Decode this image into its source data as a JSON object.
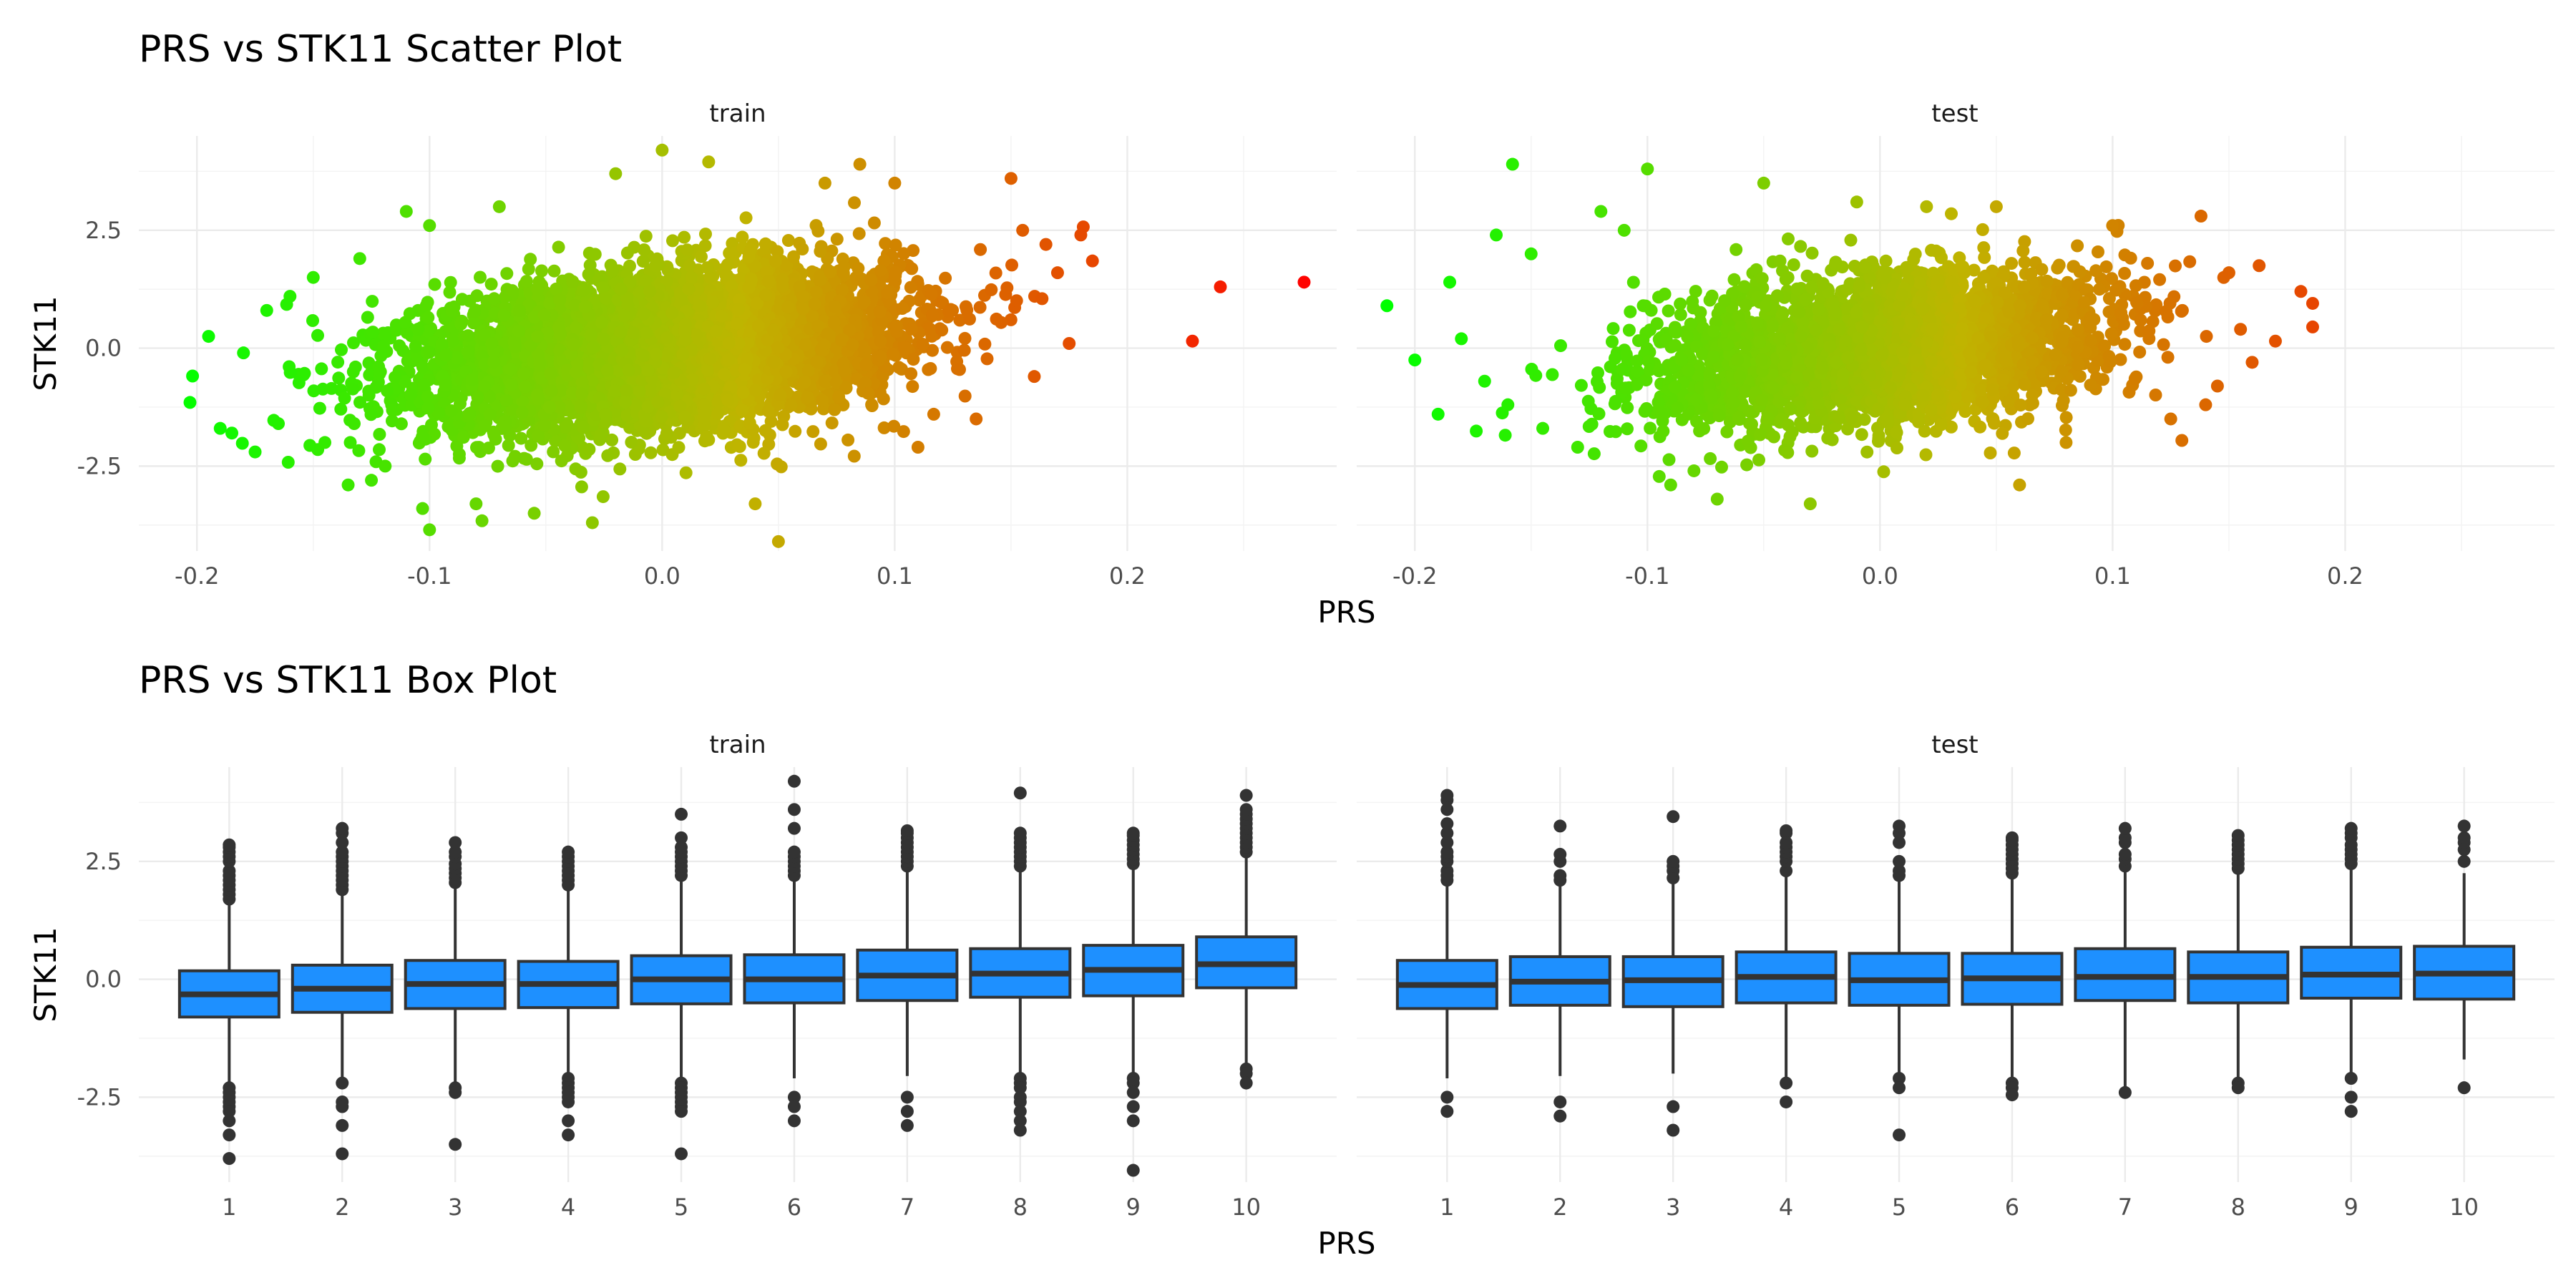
{
  "chart_data": [
    {
      "type": "scatter",
      "title": "PRS vs STK11 Scatter Plot",
      "xlabel": "PRS",
      "ylabel": "STK11",
      "xlim": [
        -0.225,
        0.29
      ],
      "ylim": [
        -4.3,
        4.5
      ],
      "x_ticks": [
        -0.2,
        -0.1,
        0.0,
        0.1,
        0.2
      ],
      "x_tick_labels": [
        "-0.2",
        "-0.1",
        "0.0",
        "0.1",
        "0.2"
      ],
      "y_ticks": [
        -2.5,
        0.0,
        2.5
      ],
      "y_tick_labels": [
        "-2.5",
        "0.0",
        "2.5"
      ],
      "grid": true,
      "legend": "none",
      "color_scale": {
        "low": "#00ff00",
        "mid": "#c0b400",
        "high": "#ff0000",
        "domain": [
          -0.21,
          0.28
        ]
      },
      "panels": [
        {
          "strip": "train",
          "cloud": {
            "n": 5600,
            "x_sd": 0.05,
            "y_sd": 0.82,
            "correlation": 0.29
          },
          "points": [
            [
              -0.203,
              -1.15
            ],
            [
              -0.195,
              0.25
            ],
            [
              -0.19,
              -1.7
            ],
            [
              -0.185,
              -1.8
            ],
            [
              -0.18,
              -0.1
            ],
            [
              -0.175,
              -2.2
            ],
            [
              -0.17,
              0.8
            ],
            [
              -0.165,
              -1.6
            ],
            [
              -0.16,
              1.1
            ],
            [
              -0.15,
              1.5
            ],
            [
              -0.145,
              -2.0
            ],
            [
              -0.135,
              -2.9
            ],
            [
              -0.13,
              1.9
            ],
            [
              -0.125,
              -2.8
            ],
            [
              -0.11,
              2.9
            ],
            [
              -0.1,
              2.6
            ],
            [
              -0.103,
              -3.4
            ],
            [
              -0.1,
              -3.85
            ],
            [
              -0.08,
              -3.3
            ],
            [
              -0.07,
              3.0
            ],
            [
              -0.055,
              -3.5
            ],
            [
              -0.03,
              -3.7
            ],
            [
              -0.02,
              3.7
            ],
            [
              0.0,
              4.2
            ],
            [
              0.02,
              3.95
            ],
            [
              0.04,
              -3.3
            ],
            [
              0.05,
              -4.1
            ],
            [
              0.07,
              3.5
            ],
            [
              0.085,
              3.9
            ],
            [
              0.1,
              3.5
            ],
            [
              0.11,
              -2.1
            ],
            [
              0.135,
              -1.5
            ],
            [
              0.15,
              3.6
            ],
            [
              0.155,
              2.5
            ],
            [
              0.16,
              -0.6
            ],
            [
              0.165,
              2.2
            ],
            [
              0.17,
              1.6
            ],
            [
              0.175,
              0.1
            ],
            [
              0.18,
              2.4
            ],
            [
              0.185,
              1.85
            ],
            [
              0.228,
              0.15
            ],
            [
              0.24,
              1.3
            ],
            [
              0.276,
              1.4
            ]
          ]
        },
        {
          "strip": "test",
          "cloud": {
            "n": 3200,
            "x_sd": 0.048,
            "y_sd": 0.8,
            "correlation": 0.28
          },
          "points": [
            [
              -0.212,
              0.9
            ],
            [
              -0.2,
              -0.25
            ],
            [
              -0.19,
              -1.4
            ],
            [
              -0.185,
              1.4
            ],
            [
              -0.18,
              0.2
            ],
            [
              -0.17,
              -0.7
            ],
            [
              -0.165,
              2.4
            ],
            [
              -0.16,
              -1.2
            ],
            [
              -0.158,
              3.9
            ],
            [
              -0.15,
              2.0
            ],
            [
              -0.145,
              -1.7
            ],
            [
              -0.13,
              -2.1
            ],
            [
              -0.12,
              2.9
            ],
            [
              -0.11,
              2.5
            ],
            [
              -0.1,
              3.8
            ],
            [
              -0.09,
              -2.9
            ],
            [
              -0.08,
              -2.6
            ],
            [
              -0.07,
              -3.2
            ],
            [
              -0.05,
              3.5
            ],
            [
              -0.03,
              -3.3
            ],
            [
              -0.01,
              3.1
            ],
            [
              0.02,
              3.0
            ],
            [
              0.05,
              3.0
            ],
            [
              0.06,
              -2.9
            ],
            [
              0.08,
              -2.0
            ],
            [
              0.1,
              2.6
            ],
            [
              0.115,
              1.8
            ],
            [
              0.125,
              -1.5
            ],
            [
              0.13,
              0.8
            ],
            [
              0.138,
              2.8
            ],
            [
              0.14,
              -1.2
            ],
            [
              0.15,
              1.6
            ],
            [
              0.155,
              0.4
            ],
            [
              0.16,
              -0.3
            ],
            [
              0.163,
              1.75
            ],
            [
              0.17,
              0.15
            ],
            [
              0.186,
              0.95
            ],
            [
              0.186,
              0.45
            ]
          ]
        }
      ]
    },
    {
      "type": "box",
      "title": "PRS vs STK11 Box Plot",
      "xlabel": "PRS",
      "ylabel": "STK11",
      "categories": [
        "1",
        "2",
        "3",
        "4",
        "5",
        "6",
        "7",
        "8",
        "9",
        "10"
      ],
      "ylim": [
        -4.3,
        4.5
      ],
      "y_ticks": [
        -2.5,
        0.0,
        2.5
      ],
      "y_tick_labels": [
        "-2.5",
        "0.0",
        "2.5"
      ],
      "grid": true,
      "legend": "none",
      "box_fill": "#1e90ff",
      "box_line": "#333333",
      "panels": [
        {
          "strip": "train",
          "boxes": [
            {
              "q1": -0.8,
              "median": -0.32,
              "q3": 0.18,
              "whisker_low": -2.2,
              "whisker_high": 1.6,
              "outliers": [
                1.7,
                1.8,
                1.9,
                2.0,
                2.1,
                2.2,
                2.3,
                2.5,
                2.6,
                2.7,
                2.8,
                2.85,
                -2.3,
                -2.4,
                -2.5,
                -2.6,
                -2.7,
                -2.8,
                -3.0,
                -3.3,
                -3.8
              ]
            },
            {
              "q1": -0.7,
              "median": -0.2,
              "q3": 0.3,
              "whisker_low": -2.1,
              "whisker_high": 1.8,
              "outliers": [
                1.9,
                2.0,
                2.1,
                2.2,
                2.3,
                2.4,
                2.5,
                2.6,
                2.7,
                2.9,
                3.1,
                3.2,
                -2.2,
                -2.6,
                -2.7,
                -3.1,
                -3.7
              ]
            },
            {
              "q1": -0.62,
              "median": -0.1,
              "q3": 0.4,
              "whisker_low": -2.2,
              "whisker_high": 1.95,
              "outliers": [
                2.05,
                2.15,
                2.25,
                2.35,
                2.45,
                2.6,
                2.7,
                2.9,
                -2.3,
                -2.4,
                -3.5
              ]
            },
            {
              "q1": -0.6,
              "median": -0.1,
              "q3": 0.38,
              "whisker_low": -2.0,
              "whisker_high": 1.9,
              "outliers": [
                2.0,
                2.1,
                2.2,
                2.3,
                2.4,
                2.5,
                2.6,
                2.7,
                -2.1,
                -2.2,
                -2.3,
                -2.4,
                -2.5,
                -2.6,
                -3.0,
                -3.3
              ]
            },
            {
              "q1": -0.52,
              "median": 0.0,
              "q3": 0.5,
              "whisker_low": -2.1,
              "whisker_high": 2.1,
              "outliers": [
                2.2,
                2.3,
                2.4,
                2.5,
                2.6,
                2.7,
                2.8,
                3.0,
                3.5,
                -2.2,
                -2.3,
                -2.4,
                -2.5,
                -2.6,
                -2.7,
                -2.8,
                -3.7
              ]
            },
            {
              "q1": -0.5,
              "median": 0.0,
              "q3": 0.52,
              "whisker_low": -2.1,
              "whisker_high": 2.1,
              "outliers": [
                2.2,
                2.3,
                2.4,
                2.5,
                2.6,
                2.7,
                3.2,
                3.6,
                4.2,
                -2.5,
                -2.7,
                -3.0
              ]
            },
            {
              "q1": -0.45,
              "median": 0.08,
              "q3": 0.62,
              "whisker_low": -2.05,
              "whisker_high": 2.3,
              "outliers": [
                2.4,
                2.5,
                2.6,
                2.7,
                2.8,
                2.9,
                3.0,
                3.1,
                3.15,
                -2.5,
                -2.8,
                -3.1
              ]
            },
            {
              "q1": -0.38,
              "median": 0.12,
              "q3": 0.65,
              "whisker_low": -2.0,
              "whisker_high": 2.3,
              "outliers": [
                2.4,
                2.5,
                2.6,
                2.7,
                2.8,
                2.9,
                3.0,
                3.1,
                3.95,
                -2.1,
                -2.2,
                -2.3,
                -2.5,
                -2.6,
                -2.8,
                -3.0,
                -3.2
              ]
            },
            {
              "q1": -0.35,
              "median": 0.2,
              "q3": 0.72,
              "whisker_low": -2.0,
              "whisker_high": 2.35,
              "outliers": [
                2.45,
                2.55,
                2.65,
                2.75,
                2.85,
                2.95,
                3.05,
                3.1,
                -2.1,
                -2.2,
                -2.4,
                -2.7,
                -3.0,
                -4.05
              ]
            },
            {
              "q1": -0.18,
              "median": 0.32,
              "q3": 0.9,
              "whisker_low": -1.8,
              "whisker_high": 2.6,
              "outliers": [
                2.7,
                2.8,
                2.9,
                3.0,
                3.1,
                3.2,
                3.3,
                3.4,
                3.5,
                3.6,
                3.9,
                -1.9,
                -2.0,
                -2.2
              ]
            }
          ]
        },
        {
          "strip": "test",
          "boxes": [
            {
              "q1": -0.62,
              "median": -0.12,
              "q3": 0.4,
              "whisker_low": -2.1,
              "whisker_high": 2.0,
              "outliers": [
                2.1,
                2.2,
                2.3,
                2.5,
                2.6,
                2.7,
                2.9,
                3.1,
                3.3,
                3.6,
                3.8,
                3.9,
                -2.5,
                -2.8
              ]
            },
            {
              "q1": -0.55,
              "median": -0.05,
              "q3": 0.48,
              "whisker_low": -2.05,
              "whisker_high": 2.0,
              "outliers": [
                2.1,
                2.2,
                2.5,
                2.65,
                3.25,
                -2.6,
                -2.9
              ]
            },
            {
              "q1": -0.58,
              "median": -0.02,
              "q3": 0.48,
              "whisker_low": -2.0,
              "whisker_high": 2.05,
              "outliers": [
                2.15,
                2.3,
                2.4,
                2.5,
                3.45,
                -2.7,
                -3.2
              ]
            },
            {
              "q1": -0.5,
              "median": 0.05,
              "q3": 0.58,
              "whisker_low": -2.1,
              "whisker_high": 2.2,
              "outliers": [
                2.3,
                2.5,
                2.6,
                2.7,
                2.8,
                2.9,
                3.1,
                3.15,
                -2.2,
                -2.6
              ]
            },
            {
              "q1": -0.55,
              "median": -0.02,
              "q3": 0.55,
              "whisker_low": -2.05,
              "whisker_high": 2.1,
              "outliers": [
                2.2,
                2.3,
                2.5,
                2.9,
                3.1,
                3.25,
                -2.1,
                -2.3,
                -3.3
              ]
            },
            {
              "q1": -0.53,
              "median": 0.02,
              "q3": 0.55,
              "whisker_low": -2.1,
              "whisker_high": 2.15,
              "outliers": [
                2.25,
                2.35,
                2.45,
                2.55,
                2.65,
                2.75,
                2.85,
                2.95,
                3.0,
                -2.2,
                -2.3,
                -2.45
              ]
            },
            {
              "q1": -0.45,
              "median": 0.05,
              "q3": 0.65,
              "whisker_low": -2.3,
              "whisker_high": 2.3,
              "outliers": [
                2.4,
                2.55,
                2.65,
                2.9,
                3.0,
                3.2,
                -2.4
              ]
            },
            {
              "q1": -0.5,
              "median": 0.05,
              "q3": 0.58,
              "whisker_low": -2.15,
              "whisker_high": 2.25,
              "outliers": [
                2.35,
                2.45,
                2.55,
                2.65,
                2.75,
                2.85,
                2.95,
                3.05,
                -2.2,
                -2.3
              ]
            },
            {
              "q1": -0.4,
              "median": 0.1,
              "q3": 0.68,
              "whisker_low": -2.05,
              "whisker_high": 2.35,
              "outliers": [
                2.45,
                2.55,
                2.65,
                2.75,
                2.85,
                3.0,
                3.1,
                3.2,
                -2.1,
                -2.5,
                -2.8
              ]
            },
            {
              "q1": -0.42,
              "median": 0.12,
              "q3": 0.7,
              "whisker_low": -1.7,
              "whisker_high": 2.25,
              "outliers": [
                2.5,
                2.75,
                2.9,
                3.0,
                3.25,
                -2.3
              ]
            }
          ]
        }
      ]
    }
  ]
}
